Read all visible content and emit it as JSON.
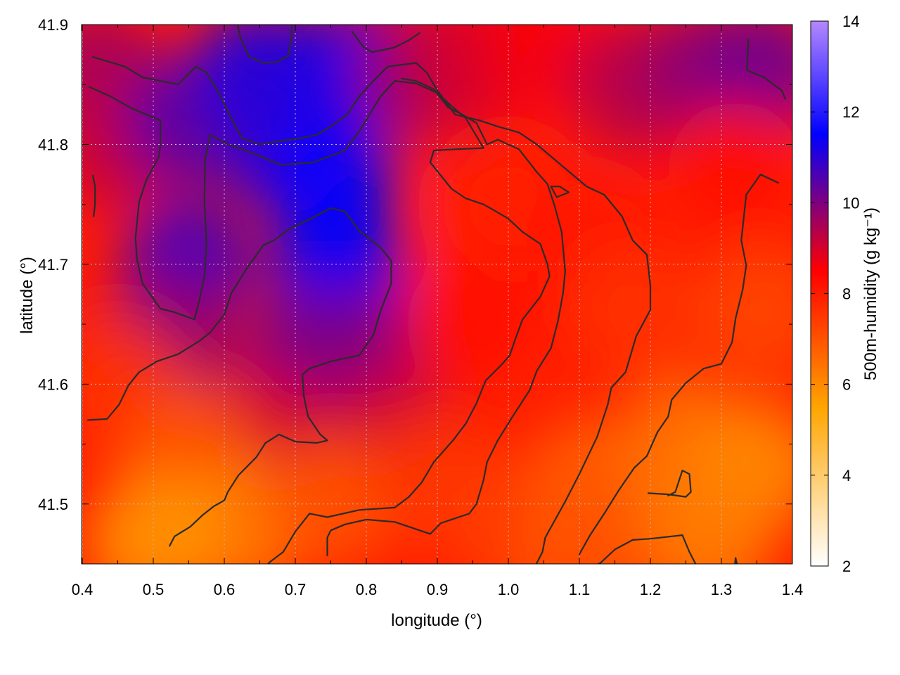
{
  "chart_data": {
    "type": "heatmap",
    "xlabel": "longitude (°)",
    "ylabel": "latitude (°)",
    "colorbar_label": "500m-humidity (g kg⁻¹)",
    "xlim": [
      0.4,
      1.4
    ],
    "ylim": [
      41.45,
      41.9
    ],
    "clim": [
      2,
      14
    ],
    "xticks": [
      "0.4",
      "0.5",
      "0.6",
      "0.7",
      "0.8",
      "0.9",
      "1.0",
      "1.1",
      "1.2",
      "1.3",
      "1.4"
    ],
    "yticks": [
      "41.5",
      "41.6",
      "41.7",
      "41.8",
      "41.9"
    ],
    "yticks_values": [
      41.5,
      41.6,
      41.7,
      41.8,
      41.9
    ],
    "cticks": [
      "2",
      "4",
      "6",
      "8",
      "10",
      "12",
      "14"
    ],
    "grid": true,
    "colormap": [
      "#ffffff",
      "#ffa500",
      "#ff0000",
      "#0000ff",
      "#b388ff"
    ],
    "colormap_stops": [
      2,
      5.5,
      8.5,
      11.5,
      14
    ],
    "humidity_field": [
      {
        "lon": 0.42,
        "lat": 41.86,
        "value": 9.6
      },
      {
        "lon": 0.45,
        "lat": 41.8,
        "value": 9.2
      },
      {
        "lon": 0.55,
        "lat": 41.82,
        "value": 10.5
      },
      {
        "lon": 0.55,
        "lat": 41.7,
        "value": 10.8
      },
      {
        "lon": 0.52,
        "lat": 41.64,
        "value": 9.8
      },
      {
        "lon": 0.65,
        "lat": 41.86,
        "value": 11.2
      },
      {
        "lon": 0.68,
        "lat": 41.8,
        "value": 11.0
      },
      {
        "lon": 0.75,
        "lat": 41.77,
        "value": 11.6
      },
      {
        "lon": 0.76,
        "lat": 41.7,
        "value": 11.5
      },
      {
        "lon": 0.78,
        "lat": 41.86,
        "value": 11.3
      },
      {
        "lon": 0.72,
        "lat": 41.62,
        "value": 10.2
      },
      {
        "lon": 0.8,
        "lat": 41.62,
        "value": 10.0
      },
      {
        "lon": 0.84,
        "lat": 41.56,
        "value": 9.0
      },
      {
        "lon": 0.66,
        "lat": 41.56,
        "value": 9.0
      },
      {
        "lon": 0.88,
        "lat": 41.86,
        "value": 9.6
      },
      {
        "lon": 0.95,
        "lat": 41.87,
        "value": 9.0
      },
      {
        "lon": 1.05,
        "lat": 41.88,
        "value": 8.6
      },
      {
        "lon": 1.18,
        "lat": 41.85,
        "value": 9.4
      },
      {
        "lon": 1.28,
        "lat": 41.86,
        "value": 9.8
      },
      {
        "lon": 1.36,
        "lat": 41.86,
        "value": 10.2
      },
      {
        "lon": 1.0,
        "lat": 41.75,
        "value": 8.0
      },
      {
        "lon": 1.12,
        "lat": 41.72,
        "value": 8.1
      },
      {
        "lon": 1.32,
        "lat": 41.78,
        "value": 8.3
      },
      {
        "lon": 0.95,
        "lat": 41.65,
        "value": 8.2
      },
      {
        "lon": 1.18,
        "lat": 41.66,
        "value": 7.6
      },
      {
        "lon": 1.36,
        "lat": 41.66,
        "value": 7.2
      },
      {
        "lon": 0.45,
        "lat": 41.6,
        "value": 7.6
      },
      {
        "lon": 0.55,
        "lat": 41.54,
        "value": 6.9
      },
      {
        "lon": 0.62,
        "lat": 41.48,
        "value": 6.2
      },
      {
        "lon": 0.5,
        "lat": 41.47,
        "value": 5.8
      },
      {
        "lon": 0.75,
        "lat": 41.5,
        "value": 7.0
      },
      {
        "lon": 0.9,
        "lat": 41.52,
        "value": 7.5
      },
      {
        "lon": 1.0,
        "lat": 41.48,
        "value": 7.4
      },
      {
        "lon": 1.12,
        "lat": 41.52,
        "value": 6.8
      },
      {
        "lon": 1.25,
        "lat": 41.55,
        "value": 6.4
      },
      {
        "lon": 1.35,
        "lat": 41.53,
        "value": 6.0
      },
      {
        "lon": 1.28,
        "lat": 41.47,
        "value": 6.2
      },
      {
        "lon": 1.1,
        "lat": 41.46,
        "value": 7.0
      }
    ],
    "contours": [
      [
        [
          0.415,
          41.873
        ],
        [
          0.46,
          41.865
        ],
        [
          0.485,
          41.856
        ],
        [
          0.535,
          41.85
        ],
        [
          0.56,
          41.865
        ],
        [
          0.575,
          41.86
        ],
        [
          0.595,
          41.84
        ],
        [
          0.607,
          41.825
        ],
        [
          0.625,
          41.805
        ],
        [
          0.65,
          41.8
        ],
        [
          0.68,
          41.803
        ],
        [
          0.705,
          41.805
        ],
        [
          0.73,
          41.808
        ],
        [
          0.75,
          41.815
        ],
        [
          0.773,
          41.825
        ],
        [
          0.79,
          41.84
        ],
        [
          0.805,
          41.85
        ],
        [
          0.83,
          41.865
        ],
        [
          0.87,
          41.868
        ],
        [
          0.885,
          41.86
        ],
        [
          0.9,
          41.845
        ],
        [
          0.925,
          41.825
        ],
        [
          0.96,
          41.82
        ],
        [
          0.985,
          41.815
        ],
        [
          1.015,
          41.81
        ],
        [
          1.04,
          41.8
        ],
        [
          1.07,
          41.785
        ],
        [
          1.1,
          41.77
        ],
        [
          1.11,
          41.765
        ],
        [
          1.135,
          41.758
        ],
        [
          1.16,
          41.74
        ],
        [
          1.175,
          41.72
        ],
        [
          1.195,
          41.708
        ],
        [
          1.2,
          41.682
        ],
        [
          1.2,
          41.662
        ],
        [
          1.18,
          41.64
        ],
        [
          1.165,
          41.61
        ],
        [
          1.145,
          41.597
        ],
        [
          1.14,
          41.583
        ],
        [
          1.125,
          41.556
        ],
        [
          1.1,
          41.525
        ],
        [
          1.08,
          41.502
        ],
        [
          1.052,
          41.472
        ],
        [
          1.048,
          41.46
        ],
        [
          1.035,
          41.445
        ],
        [
          1.022,
          41.425
        ]
      ],
      [
        [
          0.41,
          41.848
        ],
        [
          0.44,
          41.84
        ],
        [
          0.47,
          41.83
        ],
        [
          0.51,
          41.82
        ],
        [
          0.51,
          41.8
        ],
        [
          0.508,
          41.79
        ],
        [
          0.49,
          41.77
        ],
        [
          0.48,
          41.752
        ],
        [
          0.475,
          41.722
        ],
        [
          0.477,
          41.704
        ],
        [
          0.485,
          41.684
        ],
        [
          0.51,
          41.663
        ],
        [
          0.53,
          41.66
        ],
        [
          0.558,
          41.654
        ],
        [
          0.565,
          41.67
        ],
        [
          0.572,
          41.69
        ],
        [
          0.575,
          41.717
        ],
        [
          0.572,
          41.752
        ],
        [
          0.573,
          41.787
        ],
        [
          0.58,
          41.808
        ],
        [
          0.605,
          41.8
        ],
        [
          0.63,
          41.795
        ],
        [
          0.68,
          41.783
        ],
        [
          0.725,
          41.785
        ],
        [
          0.77,
          41.795
        ],
        [
          0.79,
          41.811
        ],
        [
          0.82,
          41.84
        ],
        [
          0.84,
          41.853
        ],
        [
          0.87,
          41.851
        ],
        [
          0.9,
          41.843
        ],
        [
          0.92,
          41.832
        ],
        [
          0.94,
          41.822
        ],
        [
          0.955,
          41.807
        ],
        [
          0.965,
          41.797
        ],
        [
          0.925,
          41.796
        ],
        [
          0.895,
          41.795
        ],
        [
          0.89,
          41.785
        ],
        [
          0.905,
          41.774
        ],
        [
          0.92,
          41.763
        ],
        [
          0.94,
          41.755
        ],
        [
          0.965,
          41.75
        ],
        [
          0.98,
          41.745
        ],
        [
          1.0,
          41.738
        ],
        [
          1.02,
          41.727
        ],
        [
          1.045,
          41.717
        ],
        [
          1.055,
          41.7
        ],
        [
          1.058,
          41.69
        ],
        [
          1.045,
          41.673
        ],
        [
          1.02,
          41.654
        ],
        [
          1.01,
          41.638
        ],
        [
          1.002,
          41.624
        ],
        [
          0.99,
          41.616
        ],
        [
          0.968,
          41.603
        ],
        [
          0.955,
          41.584
        ],
        [
          0.94,
          41.567
        ],
        [
          0.922,
          41.553
        ],
        [
          0.895,
          41.535
        ],
        [
          0.878,
          41.518
        ],
        [
          0.86,
          41.506
        ],
        [
          0.84,
          41.497
        ],
        [
          0.79,
          41.495
        ],
        [
          0.745,
          41.489
        ],
        [
          0.72,
          41.492
        ],
        [
          0.7,
          41.477
        ],
        [
          0.683,
          41.46
        ],
        [
          0.665,
          41.452
        ],
        [
          0.653,
          41.445
        ]
      ],
      [
        [
          0.408,
          41.57
        ],
        [
          0.435,
          41.571
        ],
        [
          0.452,
          41.583
        ],
        [
          0.465,
          41.599
        ],
        [
          0.48,
          41.61
        ],
        [
          0.505,
          41.619
        ],
        [
          0.535,
          41.625
        ],
        [
          0.565,
          41.636
        ],
        [
          0.58,
          41.643
        ],
        [
          0.6,
          41.658
        ],
        [
          0.61,
          41.676
        ],
        [
          0.63,
          41.695
        ],
        [
          0.655,
          41.716
        ],
        [
          0.67,
          41.72
        ],
        [
          0.69,
          41.729
        ],
        [
          0.725,
          41.739
        ],
        [
          0.75,
          41.747
        ],
        [
          0.77,
          41.744
        ],
        [
          0.79,
          41.728
        ],
        [
          0.82,
          41.714
        ],
        [
          0.835,
          41.703
        ],
        [
          0.835,
          41.684
        ],
        [
          0.82,
          41.661
        ],
        [
          0.81,
          41.641
        ],
        [
          0.79,
          41.624
        ],
        [
          0.75,
          41.619
        ],
        [
          0.72,
          41.613
        ],
        [
          0.71,
          41.608
        ],
        [
          0.712,
          41.59
        ],
        [
          0.718,
          41.573
        ],
        [
          0.735,
          41.558
        ],
        [
          0.745,
          41.553
        ],
        [
          0.73,
          41.551
        ],
        [
          0.7,
          41.552
        ],
        [
          0.677,
          41.558
        ],
        [
          0.658,
          41.551
        ],
        [
          0.645,
          41.539
        ],
        [
          0.62,
          41.524
        ],
        [
          0.605,
          41.51
        ],
        [
          0.6,
          41.503
        ],
        [
          0.585,
          41.498
        ],
        [
          0.57,
          41.491
        ],
        [
          0.552,
          41.481
        ],
        [
          0.53,
          41.473
        ],
        [
          0.523,
          41.465
        ]
      ],
      [
        [
          0.415,
          41.774
        ],
        [
          0.418,
          41.765
        ],
        [
          0.418,
          41.75
        ],
        [
          0.416,
          41.74
        ]
      ],
      [
        [
          0.618,
          41.903
        ],
        [
          0.622,
          41.89
        ],
        [
          0.635,
          41.873
        ],
        [
          0.655,
          41.868
        ],
        [
          0.675,
          41.869
        ],
        [
          0.69,
          41.874
        ],
        [
          0.695,
          41.89
        ],
        [
          0.695,
          41.903
        ]
      ],
      [
        [
          0.78,
          41.894
        ],
        [
          0.795,
          41.882
        ],
        [
          0.808,
          41.877
        ],
        [
          0.84,
          41.881
        ],
        [
          0.86,
          41.887
        ],
        [
          0.875,
          41.893
        ]
      ],
      [
        [
          1.06,
          41.765
        ],
        [
          1.072,
          41.765
        ],
        [
          1.085,
          41.76
        ],
        [
          1.068,
          41.756
        ],
        [
          1.06,
          41.765
        ]
      ],
      [
        [
          0.745,
          41.457
        ],
        [
          0.745,
          41.472
        ],
        [
          0.75,
          41.478
        ],
        [
          0.77,
          41.483
        ],
        [
          0.8,
          41.487
        ],
        [
          0.84,
          41.485
        ],
        [
          0.89,
          41.475
        ],
        [
          0.905,
          41.484
        ],
        [
          0.93,
          41.489
        ],
        [
          0.945,
          41.492
        ],
        [
          0.955,
          41.5
        ],
        [
          0.965,
          41.52
        ],
        [
          0.97,
          41.535
        ],
        [
          0.985,
          41.553
        ],
        [
          1.005,
          41.572
        ],
        [
          1.03,
          41.595
        ],
        [
          1.04,
          41.611
        ],
        [
          1.06,
          41.63
        ],
        [
          1.07,
          41.653
        ],
        [
          1.077,
          41.676
        ],
        [
          1.08,
          41.694
        ],
        [
          1.075,
          41.727
        ],
        [
          1.065,
          41.749
        ],
        [
          1.055,
          41.767
        ],
        [
          1.04,
          41.777
        ],
        [
          1.015,
          41.796
        ],
        [
          0.985,
          41.804
        ],
        [
          0.97,
          41.8
        ],
        [
          0.955,
          41.818
        ],
        [
          0.935,
          41.825
        ],
        [
          0.915,
          41.831
        ],
        [
          0.895,
          41.846
        ],
        [
          0.87,
          41.853
        ],
        [
          0.85,
          41.855
        ]
      ],
      [
        [
          1.11,
          41.445
        ],
        [
          1.13,
          41.451
        ],
        [
          1.15,
          41.462
        ],
        [
          1.175,
          41.47
        ],
        [
          1.2,
          41.471
        ],
        [
          1.245,
          41.474
        ],
        [
          1.255,
          41.46
        ],
        [
          1.268,
          41.445
        ]
      ],
      [
        [
          1.197,
          41.509
        ],
        [
          1.225,
          41.508
        ],
        [
          1.25,
          41.506
        ],
        [
          1.257,
          41.51
        ],
        [
          1.255,
          41.525
        ],
        [
          1.245,
          41.528
        ],
        [
          1.235,
          41.51
        ],
        [
          1.225,
          41.507
        ]
      ],
      [
        [
          1.318,
          41.445
        ],
        [
          1.32,
          41.455
        ],
        [
          1.323,
          41.447
        ]
      ],
      [
        [
          1.338,
          41.888
        ],
        [
          1.336,
          41.862
        ],
        [
          1.36,
          41.856
        ],
        [
          1.385,
          41.845
        ],
        [
          1.39,
          41.838
        ]
      ],
      [
        [
          1.38,
          41.768
        ],
        [
          1.355,
          41.775
        ],
        [
          1.335,
          41.758
        ],
        [
          1.328,
          41.72
        ],
        [
          1.335,
          41.699
        ],
        [
          1.33,
          41.679
        ],
        [
          1.32,
          41.655
        ],
        [
          1.315,
          41.635
        ],
        [
          1.3,
          41.617
        ],
        [
          1.275,
          41.613
        ],
        [
          1.25,
          41.601
        ],
        [
          1.23,
          41.587
        ],
        [
          1.225,
          41.573
        ],
        [
          1.21,
          41.56
        ],
        [
          1.195,
          41.54
        ],
        [
          1.177,
          41.53
        ],
        [
          1.155,
          41.511
        ],
        [
          1.135,
          41.492
        ],
        [
          1.115,
          41.474
        ],
        [
          1.1,
          41.458
        ]
      ]
    ]
  }
}
